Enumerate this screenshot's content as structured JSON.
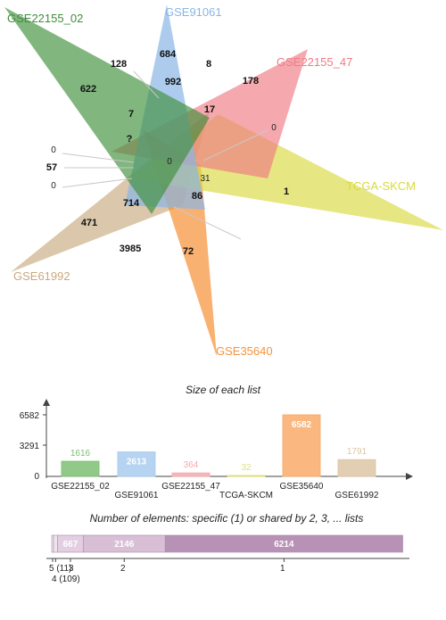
{
  "chart_data": [
    {
      "type": "venn",
      "sets": [
        {
          "name": "GSE22155_02",
          "color": "#3f8f3a"
        },
        {
          "name": "GSE91061",
          "color": "#8ab6e6"
        },
        {
          "name": "GSE22155_47",
          "color": "#f07b84"
        },
        {
          "name": "TCGA-SKCM",
          "color": "#d9d93f"
        },
        {
          "name": "GSE35640",
          "color": "#f7933a"
        },
        {
          "name": "GSE61992",
          "color": "#c8a97e"
        }
      ],
      "region_counts": [
        "684",
        "8",
        "178",
        "128",
        "992",
        "622",
        "7",
        "17",
        "?",
        "0",
        "0",
        "57",
        "0",
        "0",
        "31",
        "1",
        "86",
        "714",
        "471",
        "3985",
        "72"
      ]
    },
    {
      "type": "bar",
      "title": "Size of each list",
      "categories": [
        "GSE22155_02",
        "GSE91061",
        "GSE22155_47",
        "TCGA-SKCM",
        "GSE35640",
        "GSE61992"
      ],
      "values": [
        1616,
        2613,
        364,
        32,
        6582,
        1791
      ],
      "value_labels": [
        "1616",
        "2613",
        "364",
        "32",
        "6582",
        "1791"
      ],
      "colors": [
        "#7dbf73",
        "#a9cbee",
        "#f4a9ae",
        "#e0e07a",
        "#f9ab6a",
        "#ddc6a4"
      ],
      "ytick_labels": [
        "0",
        "3291",
        "6582"
      ],
      "ylim": [
        0,
        6582
      ]
    },
    {
      "type": "bar",
      "orientation": "horizontal-stacked",
      "title": "Number of elements: specific (1) or shared by 2, 3, ... lists",
      "segments": [
        {
          "shared_by": 5,
          "value": 11
        },
        {
          "shared_by": 4,
          "value": 109
        },
        {
          "shared_by": 3,
          "value": 667
        },
        {
          "shared_by": 2,
          "value": 2146
        },
        {
          "shared_by": 1,
          "value": 6214
        }
      ],
      "segment_labels": [
        "667",
        "2146",
        "6214"
      ],
      "axis_labels": [
        "5 (11)",
        "4 (109)",
        "3",
        "2",
        "1"
      ]
    }
  ]
}
